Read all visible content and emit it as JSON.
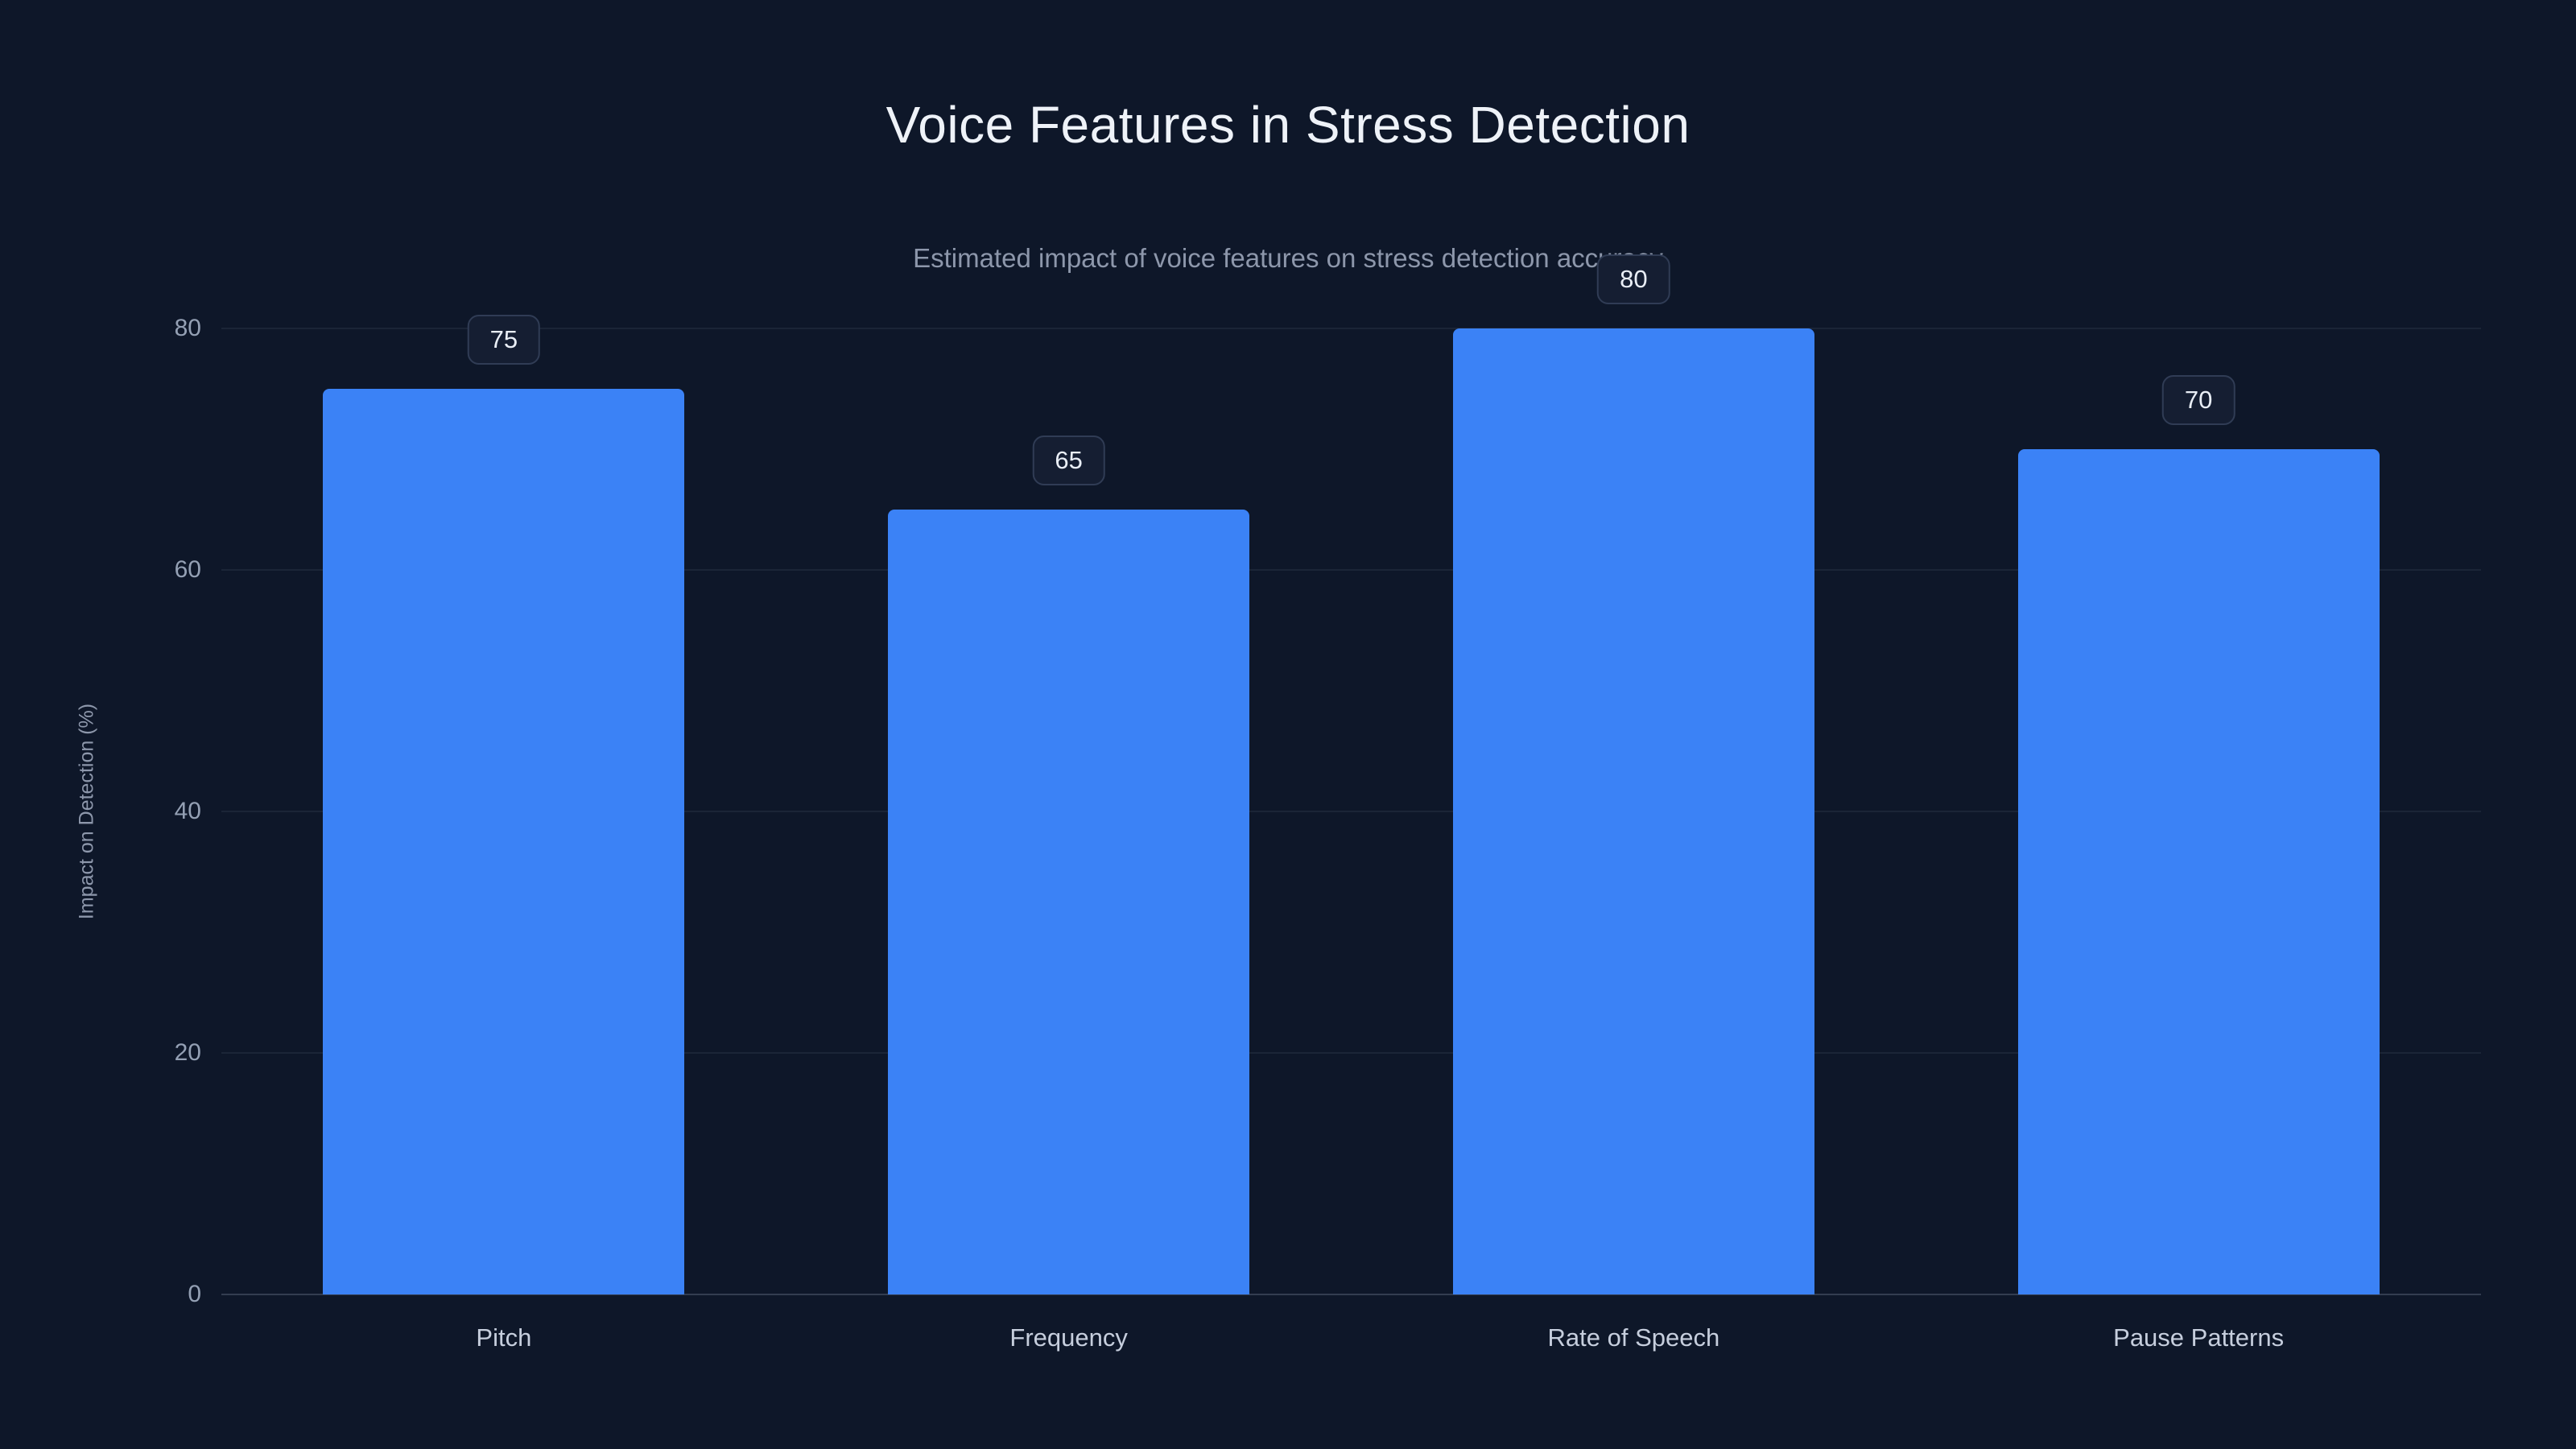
{
  "header": {
    "title": "Voice Features in Stress Detection",
    "subtitle": "Estimated impact of voice features on stress detection accuracy"
  },
  "chart_data": {
    "type": "bar",
    "title": "Voice Features in Stress Detection",
    "subtitle": "Estimated impact of voice features on stress detection accuracy",
    "categories": [
      "Pitch",
      "Frequency",
      "Rate of Speech",
      "Pause Patterns"
    ],
    "values": [
      75,
      65,
      80,
      70
    ],
    "xlabel": "",
    "ylabel": "Impact on Detection (%)",
    "ylim": [
      0,
      80
    ],
    "y_ticks": [
      0,
      20,
      40,
      60,
      80
    ],
    "grid": true,
    "legend": "none",
    "value_labels": true,
    "bar_color": "#3b82f6",
    "background_color": "#0e1729",
    "badge_background": "#151e32",
    "badge_border": "#303c55"
  }
}
